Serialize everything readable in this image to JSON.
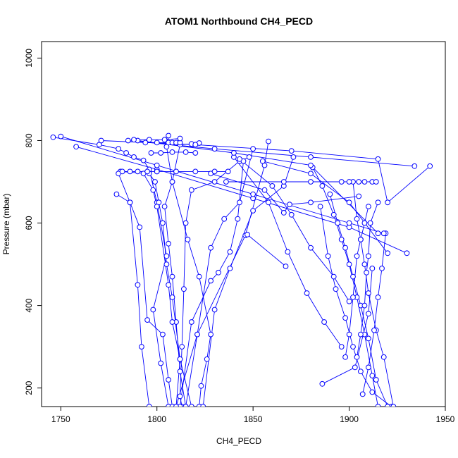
{
  "chart_data": {
    "type": "line",
    "title": "ATOM1 Northbound CH4_PECD",
    "xlabel": "CH4_PECD",
    "ylabel": "Pressure (mbar)",
    "xlim": [
      1740,
      1950
    ],
    "ylim": [
      1040,
      155
    ],
    "y_reversed": true,
    "x_ticks": [
      1750,
      1800,
      1850,
      1900,
      1950
    ],
    "y_ticks": [
      200,
      400,
      600,
      800,
      1000
    ],
    "grid": false,
    "legend": "none",
    "line_color": "#0000ff",
    "marker": "open-circle",
    "series": [
      {
        "x": [
          1806,
          1802,
          1798,
          1805,
          1800,
          1796,
          1793,
          1788,
          1784,
          1780,
          1770,
          1746
        ],
        "y": [
          155,
          260,
          390,
          520,
          650,
          730,
          752,
          760,
          770,
          780,
          790,
          808
        ]
      },
      {
        "x": [
          1810,
          1812,
          1808,
          1805,
          1803,
          1801,
          1799,
          1796,
          1781
        ],
        "y": [
          155,
          270,
          420,
          500,
          600,
          650,
          700,
          720,
          725
        ]
      },
      {
        "x": [
          1815,
          1812,
          1810,
          1808,
          1806,
          1804,
          1808,
          1812,
          1818,
          1822
        ],
        "y": [
          155,
          240,
          360,
          470,
          550,
          640,
          700,
          790,
          792,
          794
        ]
      },
      {
        "x": [
          1822,
          1823,
          1826,
          1828,
          1822,
          1816,
          1808,
          1805,
          1806
        ],
        "y": [
          155,
          205,
          270,
          330,
          470,
          560,
          700,
          785,
          812
        ]
      },
      {
        "x": [
          1813,
          1812,
          1813,
          1814,
          1815,
          1818,
          1830,
          1843,
          1848
        ],
        "y": [
          155,
          180,
          300,
          440,
          600,
          680,
          700,
          750,
          760
        ]
      },
      {
        "x": [
          1818,
          1812,
          1808,
          1806,
          1800,
          1798,
          1793
        ],
        "y": [
          155,
          270,
          360,
          450,
          640,
          680,
          720
        ]
      },
      {
        "x": [
          1796,
          1792,
          1790,
          1786,
          1780
        ],
        "y": [
          155,
          300,
          450,
          650,
          720
        ]
      },
      {
        "x": [
          1808,
          1806,
          1803,
          1795,
          1791,
          1786,
          1779
        ],
        "y": [
          155,
          220,
          330,
          365,
          590,
          650,
          670
        ]
      },
      {
        "x": [
          1812,
          1818,
          1828,
          1832,
          1838,
          1842,
          1845
        ],
        "y": [
          155,
          360,
          460,
          480,
          530,
          610,
          750
        ]
      },
      {
        "x": [
          1810,
          1821,
          1828,
          1835,
          1843,
          1850
        ],
        "y": [
          155,
          330,
          540,
          610,
          650,
          780
        ]
      },
      {
        "x": [
          1824,
          1830,
          1838,
          1850,
          1866,
          1871
        ],
        "y": [
          155,
          390,
          490,
          630,
          690,
          760
        ]
      },
      {
        "x": [
          1815,
          1821,
          1846,
          1856,
          1858
        ],
        "y": [
          155,
          330,
          570,
          740,
          798
        ]
      },
      {
        "x": [
          1922,
          1912,
          1906,
          1902,
          1898,
          1893,
          1889,
          1885
        ],
        "y": [
          155,
          190,
          240,
          300,
          370,
          440,
          520,
          640
        ]
      },
      {
        "x": [
          1915,
          1912,
          1908,
          1904,
          1900,
          1896,
          1892,
          1886,
          1881
        ],
        "y": [
          155,
          230,
          330,
          420,
          500,
          560,
          620,
          690,
          735
        ]
      },
      {
        "x": [
          1920,
          1914,
          1910,
          1906,
          1902,
          1898,
          1894,
          1890
        ],
        "y": [
          155,
          220,
          320,
          400,
          470,
          540,
          600,
          670
        ]
      },
      {
        "x": [
          1923,
          1918,
          1914,
          1910,
          1908,
          1906,
          1904,
          1902
        ],
        "y": [
          155,
          275,
          340,
          430,
          500,
          560,
          610,
          700
        ]
      },
      {
        "x": [
          1886,
          1903,
          1910,
          1912
        ],
        "y": [
          210,
          250,
          380,
          490
        ]
      },
      {
        "x": [
          1898,
          1900,
          1902,
          1904,
          1906,
          1908,
          1910
        ],
        "y": [
          275,
          330,
          420,
          520,
          560,
          600,
          640
        ]
      },
      {
        "x": [
          1907,
          1910,
          1913,
          1915,
          1917,
          1919
        ],
        "y": [
          185,
          250,
          340,
          420,
          490,
          575
        ]
      },
      {
        "x": [
          1904,
          1906,
          1908,
          1909,
          1910,
          1911,
          1915
        ],
        "y": [
          275,
          330,
          400,
          480,
          520,
          600,
          650
        ]
      },
      {
        "x": [
          1840,
          1858,
          1868,
          1878,
          1887,
          1896
        ],
        "y": [
          760,
          650,
          530,
          430,
          360,
          300
        ]
      },
      {
        "x": [
          1843,
          1860,
          1870,
          1880,
          1892,
          1900
        ],
        "y": [
          755,
          690,
          620,
          540,
          470,
          410
        ]
      },
      {
        "x": [
          1847,
          1867
        ],
        "y": [
          572,
          495
        ]
      },
      {
        "x": [
          1758,
          1800,
          1850,
          1900,
          1930
        ],
        "y": [
          785,
          730,
          660,
          590,
          527
        ]
      },
      {
        "x": [
          1750,
          1800,
          1850,
          1900,
          1918
        ],
        "y": [
          810,
          740,
          670,
          600,
          575
        ]
      },
      {
        "x": [
          1771,
          1820,
          1870,
          1915,
          1920,
          1942
        ],
        "y": [
          800,
          790,
          775,
          755,
          650,
          738
        ]
      },
      {
        "x": [
          1785,
          1830,
          1880,
          1934
        ],
        "y": [
          800,
          780,
          760,
          738
        ]
      },
      {
        "x": [
          1790,
          1840,
          1880,
          1915
        ],
        "y": [
          800,
          770,
          740,
          575
        ]
      },
      {
        "x": [
          1836,
          1866,
          1880,
          1896,
          1900,
          1905,
          1908,
          1912,
          1914
        ],
        "y": [
          700,
          700,
          700,
          700,
          700,
          700,
          700,
          700,
          700
        ]
      },
      {
        "x": [
          1855,
          1880,
          1900,
          1920
        ],
        "y": [
          750,
          720,
          650,
          527
        ]
      },
      {
        "x": [
          1828,
          1856,
          1866,
          1869,
          1880,
          1905
        ],
        "y": [
          720,
          680,
          625,
          645,
          650,
          665
        ]
      },
      {
        "x": [
          1800,
          1810,
          1820,
          1830,
          1837
        ],
        "y": [
          725,
          725,
          725,
          725,
          725
        ]
      },
      {
        "x": [
          1794,
          1800,
          1806,
          1808,
          1810,
          1812
        ],
        "y": [
          795,
          795,
          795,
          795,
          795,
          795
        ]
      },
      {
        "x": [
          1782,
          1786,
          1790,
          1795,
          1800
        ],
        "y": [
          725,
          725,
          725,
          725,
          725
        ]
      },
      {
        "x": [
          1797,
          1802,
          1808,
          1815,
          1820
        ],
        "y": [
          770,
          770,
          772,
          772,
          770
        ]
      },
      {
        "x": [
          1788,
          1796,
          1804,
          1812
        ],
        "y": [
          802,
          802,
          802,
          805
        ]
      }
    ]
  }
}
